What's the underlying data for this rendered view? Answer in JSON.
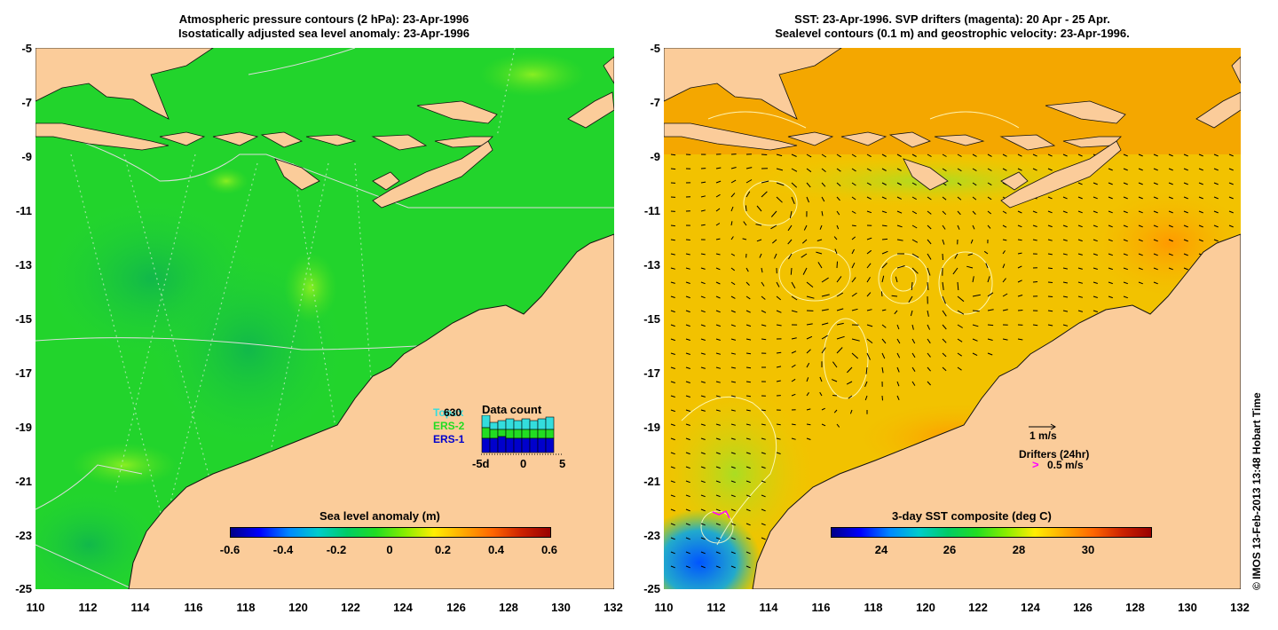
{
  "left_panel": {
    "title_line1": "Atmospheric pressure contours (2 hPa): 23-Apr-1996",
    "title_line2": "Isostatically adjusted sea level anomaly: 23-Apr-1996",
    "y_ticks": [
      "-5",
      "-7",
      "-9",
      "-11",
      "-13",
      "-15",
      "-17",
      "-19",
      "-21",
      "-23",
      "-25"
    ],
    "x_ticks": [
      "110",
      "112",
      "114",
      "116",
      "118",
      "120",
      "122",
      "124",
      "126",
      "128",
      "130",
      "132"
    ],
    "colorbar_label": "Sea level anomaly (m)",
    "colorbar_ticks": [
      "-0.6",
      "-0.4",
      "-0.2",
      "0",
      "0.2",
      "0.4",
      "0.6"
    ],
    "data_count": {
      "title": "Data count",
      "count": "630",
      "sat_topex": "Topex",
      "sat_ers2": "ERS-2",
      "sat_ers1": "ERS-1",
      "x_ticks": [
        "-5d",
        "0",
        "5"
      ]
    },
    "colors": {
      "ocean": "#22dd22",
      "land": "#fbcc9a",
      "topex": "#33dddd",
      "ers2": "#22dd22",
      "ers1": "#0000cc"
    }
  },
  "right_panel": {
    "title_line1": "SST: 23-Apr-1996. SVP drifters (magenta): 20 Apr - 25 Apr.",
    "title_line2": "Sealevel contours (0.1 m) and geostrophic velocity: 23-Apr-1996.",
    "y_ticks": [
      "-5",
      "-7",
      "-9",
      "-11",
      "-13",
      "-15",
      "-17",
      "-19",
      "-21",
      "-23",
      "-25"
    ],
    "x_ticks": [
      "110",
      "112",
      "114",
      "116",
      "118",
      "120",
      "122",
      "124",
      "126",
      "128",
      "130",
      "132"
    ],
    "colorbar_label": "3-day SST composite (deg C)",
    "colorbar_ticks": [
      "24",
      "26",
      "28",
      "30"
    ],
    "velocity_scale": "1 m/s",
    "drifters_label": "Drifters (24hr)",
    "drifters_scale": "0.5 m/s",
    "colors": {
      "ocean": "#f0b000",
      "land": "#fbcc9a",
      "drifter": "#ff00ff"
    }
  },
  "credit": "© IMOS 13-Feb-2013 13:48 Hobart Time"
}
